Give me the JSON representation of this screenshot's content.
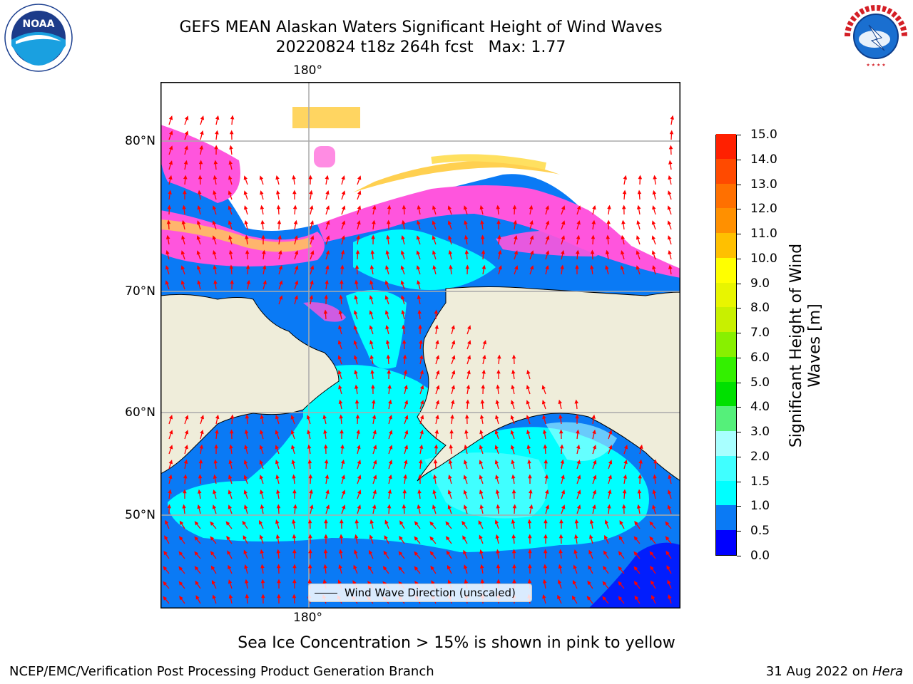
{
  "title": {
    "line1": "GEFS MEAN Alaskan Waters Significant Height of Wind Waves",
    "line2": "20220824 t18z 264h fcst   Max: 1.77"
  },
  "map": {
    "lon_label_top": "180°",
    "lon_label_bottom": "180°",
    "lat_labels": [
      "80°N",
      "70°N",
      "60°N",
      "50°N"
    ],
    "land_color": "#efedda",
    "legend_label": "Wind Wave Direction (unscaled)"
  },
  "colorbar": {
    "label": "Significant Height of Wind Waves [m]",
    "ticks": [
      "15.0",
      "14.0",
      "13.0",
      "12.0",
      "11.0",
      "10.0",
      "9.0",
      "8.0",
      "7.0",
      "6.0",
      "5.0",
      "4.0",
      "3.0",
      "2.0",
      "1.5",
      "1.0",
      "0.5",
      "0.0"
    ],
    "colors": [
      "#0000ff",
      "#0a7af5",
      "#00ffff",
      "#40ffff",
      "#a8ffff",
      "#55f07a",
      "#00e000",
      "#33f000",
      "#88f000",
      "#c8f000",
      "#e8f500",
      "#ffff00",
      "#ffc000",
      "#ff9000",
      "#ff7000",
      "#ff4a00",
      "#ff2000"
    ]
  },
  "notes": {
    "ice": "Sea Ice Concentration > 15% is shown in pink to yellow",
    "footer_left": "NCEP/EMC/Verification Post Processing Product Generation Branch",
    "footer_date": "31 Aug 2022 on ",
    "footer_host": "Hera"
  },
  "logos": {
    "noaa": "NOAA",
    "nws": "NATIONAL WEATHER SERVICE"
  }
}
